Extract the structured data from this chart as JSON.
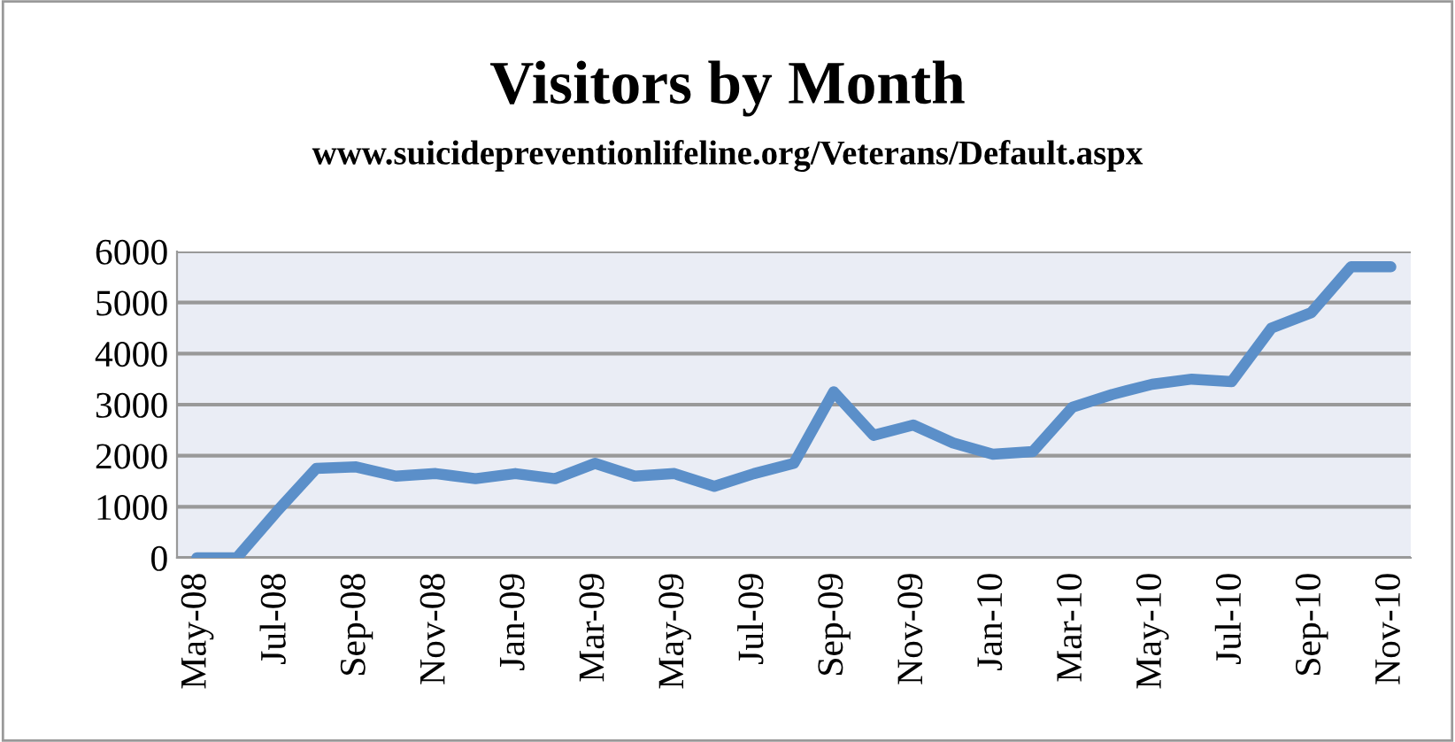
{
  "chart_data": {
    "type": "line",
    "title": "Visitors by Month",
    "subtitle": "www.suicidepreventionlifeline.org/Veterans/Default.aspx",
    "categories": [
      "May-08",
      null,
      "Jul-08",
      null,
      "Sep-08",
      null,
      "Nov-08",
      null,
      "Jan-09",
      null,
      "Mar-09",
      null,
      "May-09",
      null,
      "Jul-09",
      null,
      "Sep-09",
      null,
      "Nov-09",
      null,
      "Jan-10",
      null,
      "Mar-10",
      null,
      "May-10",
      null,
      "Jul-10",
      null,
      "Sep-10",
      null,
      "Nov-10"
    ],
    "series": [
      {
        "color": "#5b8fc9",
        "values": [
          0,
          0,
          900,
          1750,
          1780,
          1600,
          1650,
          1550,
          1650,
          1550,
          1850,
          1600,
          1650,
          1400,
          1650,
          1850,
          3250,
          2400,
          2600,
          2250,
          2030,
          2080,
          2950,
          3200,
          3400,
          3500,
          3450,
          4500,
          4800,
          5700,
          5700
        ]
      }
    ],
    "ylim": [
      0,
      6000
    ],
    "yticks": [
      0,
      1000,
      2000,
      3000,
      4000,
      5000,
      6000
    ],
    "grid": "y",
    "legend": false,
    "marker": "none",
    "line_style": "solid"
  }
}
